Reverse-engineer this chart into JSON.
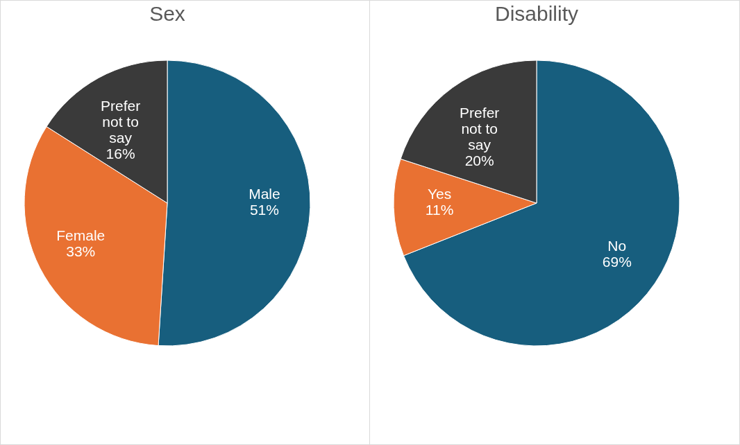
{
  "chart_data": [
    {
      "type": "pie",
      "title": "Sex",
      "categories": [
        "Male",
        "Female",
        "Prefer not to say"
      ],
      "values": [
        51,
        33,
        16
      ],
      "value_labels": [
        "51%",
        "33%",
        "16%"
      ],
      "colors": [
        "#175e7e",
        "#e97132",
        "#3a3a3a"
      ],
      "legend": false
    },
    {
      "type": "pie",
      "title": "Disability",
      "categories": [
        "No",
        "Yes",
        "Prefer not to say"
      ],
      "values": [
        69,
        11,
        20
      ],
      "value_labels": [
        "69%",
        "11%",
        "20%"
      ],
      "colors": [
        "#175e7e",
        "#e97132",
        "#3a3a3a"
      ],
      "legend": false
    }
  ]
}
